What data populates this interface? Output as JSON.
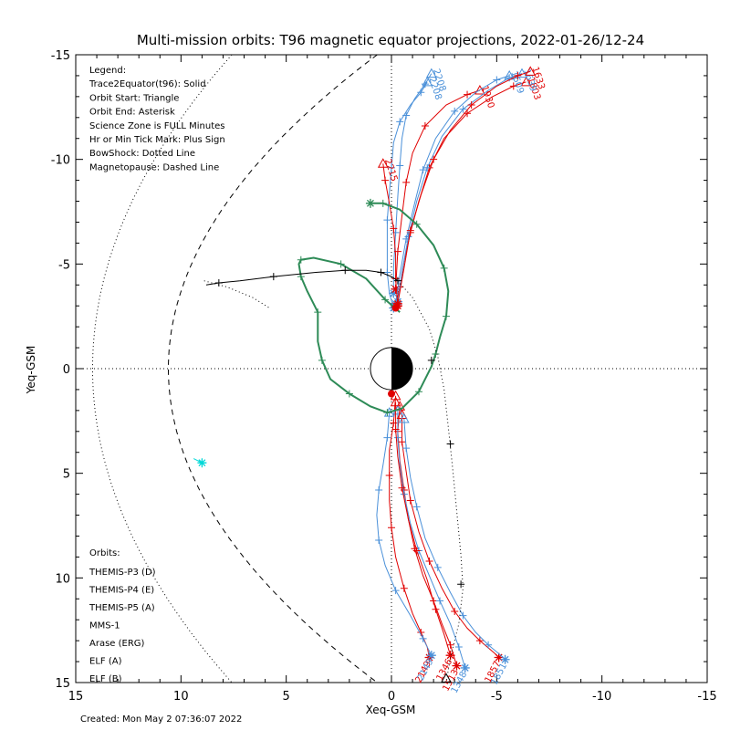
{
  "chart_data": {
    "type": "line",
    "title": "Multi-mission orbits: T96 magnetic equator projections, 2022-01-26/12-24",
    "xlabel": "Xeq-GSM",
    "ylabel": "Yeq-GSM",
    "xlim": [
      15,
      -15
    ],
    "ylim": [
      -15,
      15
    ],
    "x_ticks": [
      "15",
      "10",
      "5",
      "0",
      "-5",
      "-10",
      "-15"
    ],
    "y_ticks": [
      "-15",
      "-10",
      "-5",
      "0",
      "5",
      "10",
      "15"
    ],
    "grid": "dotted zero lines",
    "legend_position": "top-left",
    "legend_lines": [
      "Legend:",
      "Trace2Equator(t96): Solid",
      "Orbit Start: Triangle",
      "Orbit End: Asterisk",
      "Science Zone is FULL Minutes",
      "Hr or Min Tick Mark: Plus Sign",
      "BowShock: Dotted Line",
      "Magnetopause: Dashed Line"
    ],
    "orbits_title": "Orbits:",
    "orbits": [
      {
        "name": "THEMIS-P3 (D)",
        "color": "#00d8d8"
      },
      {
        "name": "THEMIS-P4 (E)",
        "color": "#0000c8"
      },
      {
        "name": "THEMIS-P5 (A)",
        "color": "#d000d0"
      },
      {
        "name": "MMS-1",
        "color": "#000000"
      },
      {
        "name": "Arase (ERG)",
        "color": "#2e8b57"
      },
      {
        "name": "ELF (A)",
        "color": "#4a90d9"
      },
      {
        "name": "ELF (B)",
        "color": "#e00000"
      }
    ],
    "created": "Created: Mon May  2 07:36:07 2022",
    "series": [
      {
        "name": "Arase (ERG)",
        "color": "#2e8b57",
        "style": "solid",
        "x": [
          1.0,
          0.4,
          -0.4,
          -1.2,
          -2.0,
          -2.5,
          -2.7,
          -2.6,
          -2.3,
          -2.1,
          -1.9,
          -1.3,
          -0.5,
          0.2,
          1.0,
          2.0,
          2.9,
          3.3,
          3.5,
          3.5,
          4.0,
          4.3,
          4.4,
          4.3,
          3.7,
          2.4,
          1.2,
          0.3,
          -0.4
        ],
        "y": [
          -7.9,
          -7.9,
          -7.6,
          -6.9,
          -5.9,
          -4.8,
          -3.7,
          -2.5,
          -1.5,
          -0.7,
          -0.1,
          1.1,
          1.9,
          2.1,
          1.8,
          1.2,
          0.5,
          -0.4,
          -1.3,
          -2.7,
          -3.7,
          -4.4,
          -5.0,
          -5.2,
          -5.3,
          -5.0,
          -4.3,
          -3.3,
          -2.7
        ],
        "start_marker": "asterisk-at-first"
      },
      {
        "name": "MMS-1",
        "color": "#000000",
        "style": "solid",
        "x": [
          8.8,
          8.2,
          7.2,
          5.6,
          3.6,
          2.2,
          1.2,
          0.5,
          0.0,
          -0.3
        ],
        "y": [
          -4.0,
          -4.1,
          -4.2,
          -4.4,
          -4.6,
          -4.7,
          -4.7,
          -4.6,
          -4.4,
          -4.2
        ]
      },
      {
        "name": "MMS-1",
        "color": "#000000",
        "style": "dotted",
        "x": [
          -0.3,
          -1.0,
          -1.8,
          -2.2,
          -2.5,
          -2.7,
          -2.9,
          -3.1,
          -3.3,
          -3.4,
          -3.2,
          -2.8,
          -2.6
        ],
        "y": [
          -4.2,
          -3.4,
          -1.9,
          -0.6,
          1.0,
          2.8,
          4.7,
          6.8,
          8.9,
          10.5,
          12.2,
          13.8,
          15.0
        ]
      },
      {
        "name": "THEMIS-P3 (D)",
        "color": "#00d8d8",
        "style": "solid",
        "x": [
          9.4,
          9.0
        ],
        "y": [
          4.3,
          4.5
        ]
      }
    ],
    "elf_traces_north": [
      {
        "color": "#4a90d9",
        "x": [
          -1.7,
          -1.4,
          -0.9,
          -0.4,
          -0.1,
          0.0,
          0.1,
          0.2,
          0.2,
          0.2,
          0.1,
          -0.1
        ],
        "y": [
          -13.7,
          -13.2,
          -12.6,
          -11.8,
          -10.8,
          -9.6,
          -8.4,
          -7.1,
          -5.8,
          -4.6,
          -3.6,
          -2.9
        ],
        "label": "2208"
      },
      {
        "color": "#4a90d9",
        "x": [
          -1.9,
          -1.6,
          -1.1,
          -0.7,
          -0.5,
          -0.4,
          -0.3,
          -0.2,
          -0.1,
          -0.1
        ],
        "y": [
          -14.1,
          -13.6,
          -12.9,
          -12.1,
          -11.0,
          -9.7,
          -8.2,
          -6.5,
          -4.8,
          -3.6
        ],
        "label": "2208"
      },
      {
        "color": "#e00000",
        "x": [
          -4.2,
          -3.6,
          -2.6,
          -1.6,
          -1.0,
          -0.7,
          -0.5,
          -0.3,
          -0.2
        ],
        "y": [
          -13.3,
          -13.1,
          -12.6,
          -11.6,
          -10.3,
          -8.9,
          -7.3,
          -5.6,
          -3.8
        ],
        "label": "1930"
      },
      {
        "color": "#e00000",
        "x": [
          -6.4,
          -5.8,
          -4.8,
          -3.6,
          -2.5,
          -1.8,
          -1.3,
          -0.9,
          -0.6,
          -0.4,
          -0.2
        ],
        "y": [
          -13.7,
          -13.5,
          -13.0,
          -12.2,
          -11.0,
          -9.6,
          -8.0,
          -6.5,
          -5.1,
          -3.9,
          -3.0
        ],
        "label": "1803"
      },
      {
        "color": "#4a90d9",
        "x": [
          -6.2,
          -5.6,
          -4.6,
          -3.4,
          -2.4,
          -1.7,
          -1.2,
          -0.8,
          -0.5,
          -0.3
        ],
        "y": [
          -14.1,
          -13.9,
          -13.3,
          -12.4,
          -11.1,
          -9.6,
          -8.0,
          -6.3,
          -4.6,
          -3.2
        ],
        "label": "1639"
      },
      {
        "color": "#4a90d9",
        "x": [
          -5.6,
          -5.0,
          -4.0,
          -3.0,
          -2.1,
          -1.5,
          -1.1,
          -0.7,
          -0.4,
          -0.2
        ],
        "y": [
          -14.0,
          -13.8,
          -13.2,
          -12.3,
          -11.0,
          -9.5,
          -7.9,
          -6.2,
          -4.5,
          -3.1
        ],
        "label": "1609"
      },
      {
        "color": "#e00000",
        "x": [
          -6.6,
          -6.0,
          -5.0,
          -3.8,
          -2.8,
          -2.0,
          -1.4,
          -0.9,
          -0.6,
          -0.3
        ],
        "y": [
          -14.2,
          -14.0,
          -13.5,
          -12.6,
          -11.4,
          -10.0,
          -8.3,
          -6.6,
          -4.8,
          -3.1
        ],
        "label": "1633"
      },
      {
        "color": "#e00000",
        "x": [
          0.4,
          0.3,
          0.1,
          -0.1,
          -0.2,
          -0.2,
          -0.3
        ],
        "y": [
          -9.8,
          -9.0,
          -7.9,
          -6.7,
          -5.4,
          -4.3,
          -3.0
        ],
        "label": "2215"
      }
    ],
    "elf_traces_south": [
      {
        "color": "#e00000",
        "x": [
          -0.2,
          -0.1,
          0.1,
          0.1,
          0.1,
          0.0,
          -0.2,
          -0.6,
          -1.0,
          -1.4,
          -1.7,
          -1.8
        ],
        "y": [
          1.3,
          2.6,
          3.9,
          5.1,
          6.3,
          7.6,
          9.0,
          10.5,
          11.7,
          12.6,
          13.3,
          13.8
        ],
        "label": "2149"
      },
      {
        "color": "#4a90d9",
        "x": [
          0.1,
          0.2,
          0.4,
          0.6,
          0.7,
          0.6,
          0.3,
          -0.2,
          -0.9,
          -1.5,
          -1.9
        ],
        "y": [
          2.1,
          3.3,
          4.6,
          5.8,
          7.0,
          8.2,
          9.4,
          10.6,
          11.8,
          12.9,
          13.7
        ],
        "label": "2149"
      },
      {
        "color": "#e00000",
        "x": [
          -0.4,
          -0.3,
          -0.4,
          -0.6,
          -0.8,
          -1.1,
          -1.5,
          -2.0,
          -2.4,
          -2.8,
          -3.1
        ],
        "y": [
          1.8,
          3.0,
          4.4,
          5.8,
          7.2,
          8.6,
          9.9,
          11.1,
          12.2,
          13.2,
          14.2
        ],
        "label": "1513"
      },
      {
        "color": "#4a90d9",
        "x": [
          -0.3,
          -0.3,
          -0.4,
          -0.6,
          -0.9,
          -1.3,
          -1.8,
          -2.3,
          -2.8,
          -3.2,
          -3.5
        ],
        "y": [
          2.0,
          3.3,
          4.6,
          6.0,
          7.4,
          8.7,
          9.9,
          11.1,
          12.2,
          13.3,
          14.3
        ],
        "label": "1348"
      },
      {
        "color": "#e00000",
        "x": [
          -0.5,
          -0.5,
          -0.7,
          -0.9,
          -1.3,
          -1.8,
          -2.4,
          -3.0,
          -3.6,
          -4.2,
          -4.9,
          -5.1
        ],
        "y": [
          2.2,
          3.5,
          4.9,
          6.3,
          7.8,
          9.2,
          10.5,
          11.6,
          12.4,
          13.0,
          13.6,
          13.8
        ],
        "label": "1857"
      },
      {
        "color": "#4a90d9",
        "x": [
          -0.6,
          -0.7,
          -0.9,
          -1.2,
          -1.6,
          -2.2,
          -2.8,
          -3.4,
          -4.0,
          -4.6,
          -5.2,
          -5.4
        ],
        "y": [
          2.4,
          3.8,
          5.2,
          6.6,
          8.1,
          9.5,
          10.7,
          11.8,
          12.6,
          13.2,
          13.7,
          13.9
        ],
        "label": "1851"
      },
      {
        "color": "#e00000",
        "x": [
          -0.2,
          -0.2,
          -0.3,
          -0.5,
          -0.8,
          -1.2,
          -1.7,
          -2.1,
          -2.5,
          -2.8
        ],
        "y": [
          1.6,
          2.9,
          4.2,
          5.7,
          7.2,
          8.7,
          10.1,
          11.5,
          12.7,
          13.7
        ],
        "label": "1346"
      }
    ]
  }
}
